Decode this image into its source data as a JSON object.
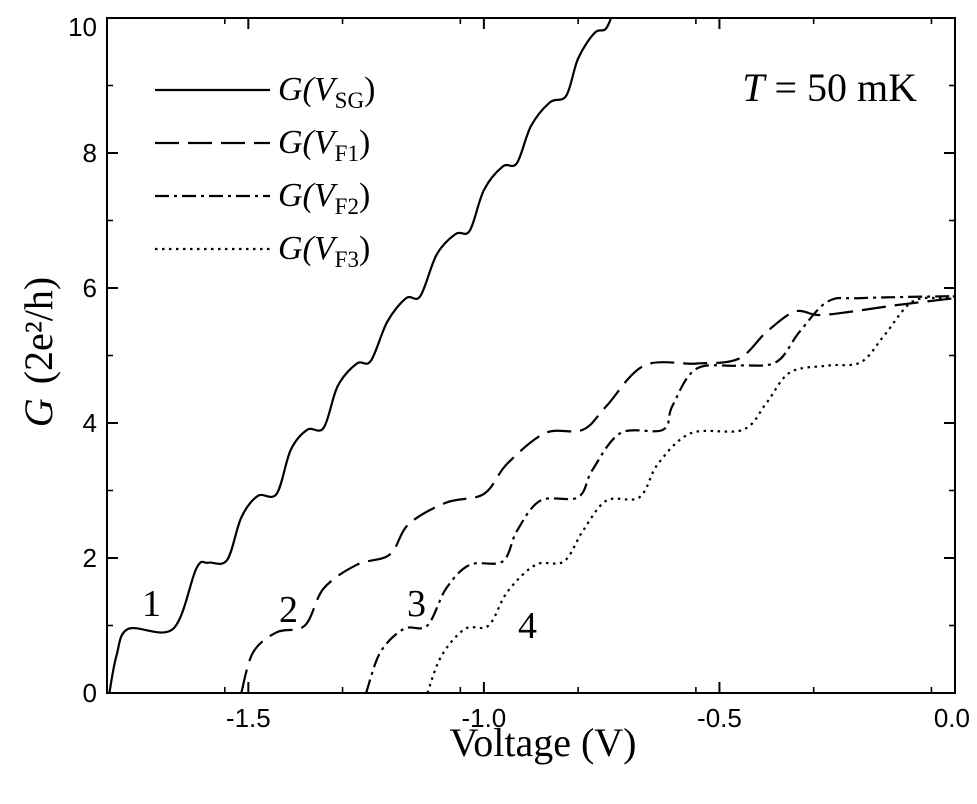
{
  "chart_data": {
    "type": "line",
    "title": "",
    "xlabel": "Voltage  (V)",
    "ylabel_var": "G",
    "ylabel_units": "(2e²/h)",
    "xlim": [
      -1.8,
      0.0
    ],
    "ylim": [
      0,
      10
    ],
    "xticks": [
      -1.5,
      -1.0,
      -0.5,
      0.0
    ],
    "xtick_labels": [
      "-1.5",
      "-1.0",
      "-0.5",
      "0.0"
    ],
    "yticks": [
      0,
      2,
      4,
      6,
      8,
      10
    ],
    "ytick_labels": [
      "0",
      "2",
      "4",
      "6",
      "8",
      "10"
    ],
    "annotation": "T = 50 mK",
    "annotation_parts": {
      "var": "T",
      "rest": " = 50 mK"
    },
    "legend_location": "top-left",
    "series": [
      {
        "name": "G(V_SG)",
        "legend_var": "G(V",
        "legend_sub": "SG",
        "legend_close": ")",
        "curve_label": "1",
        "dash": "solid",
        "points": [
          [
            -1.795,
            0
          ],
          [
            -1.78,
            0.55
          ],
          [
            -1.755,
            0.95
          ],
          [
            -1.66,
            0.95
          ],
          [
            -1.61,
            1.85
          ],
          [
            -1.585,
            1.93
          ],
          [
            -1.545,
            1.97
          ],
          [
            -1.515,
            2.6
          ],
          [
            -1.48,
            2.92
          ],
          [
            -1.44,
            2.95
          ],
          [
            -1.41,
            3.6
          ],
          [
            -1.375,
            3.9
          ],
          [
            -1.34,
            3.93
          ],
          [
            -1.31,
            4.55
          ],
          [
            -1.27,
            4.88
          ],
          [
            -1.24,
            4.92
          ],
          [
            -1.205,
            5.5
          ],
          [
            -1.165,
            5.85
          ],
          [
            -1.135,
            5.88
          ],
          [
            -1.1,
            6.5
          ],
          [
            -1.06,
            6.8
          ],
          [
            -1.03,
            6.85
          ],
          [
            -1.0,
            7.45
          ],
          [
            -0.96,
            7.8
          ],
          [
            -0.93,
            7.85
          ],
          [
            -0.9,
            8.4
          ],
          [
            -0.86,
            8.75
          ],
          [
            -0.825,
            8.85
          ],
          [
            -0.8,
            9.4
          ],
          [
            -0.765,
            9.78
          ],
          [
            -0.74,
            9.85
          ],
          [
            -0.72,
            10.2
          ]
        ]
      },
      {
        "name": "G(V_F1)",
        "legend_var": "G(V",
        "legend_sub": "F1",
        "legend_close": ")",
        "curve_label": "2",
        "dash": "dashed",
        "points": [
          [
            -1.515,
            0
          ],
          [
            -1.49,
            0.6
          ],
          [
            -1.44,
            0.9
          ],
          [
            -1.38,
            1.0
          ],
          [
            -1.34,
            1.55
          ],
          [
            -1.27,
            1.9
          ],
          [
            -1.2,
            2.05
          ],
          [
            -1.16,
            2.5
          ],
          [
            -1.08,
            2.82
          ],
          [
            -1.0,
            2.95
          ],
          [
            -0.95,
            3.4
          ],
          [
            -0.87,
            3.85
          ],
          [
            -0.79,
            3.9
          ],
          [
            -0.74,
            4.25
          ],
          [
            -0.66,
            4.85
          ],
          [
            -0.55,
            4.88
          ],
          [
            -0.46,
            4.95
          ],
          [
            -0.4,
            5.35
          ],
          [
            -0.34,
            5.65
          ],
          [
            -0.29,
            5.6
          ],
          [
            -0.22,
            5.65
          ],
          [
            -0.12,
            5.75
          ],
          [
            0.0,
            5.85
          ]
        ]
      },
      {
        "name": "G(V_F2)",
        "legend_var": "G(V",
        "legend_sub": "F2",
        "legend_close": ")",
        "curve_label": "3",
        "dash": "dashdot",
        "points": [
          [
            -1.25,
            0
          ],
          [
            -1.22,
            0.6
          ],
          [
            -1.17,
            0.95
          ],
          [
            -1.12,
            1.0
          ],
          [
            -1.08,
            1.55
          ],
          [
            -1.03,
            1.9
          ],
          [
            -0.96,
            1.95
          ],
          [
            -0.93,
            2.4
          ],
          [
            -0.88,
            2.85
          ],
          [
            -0.8,
            2.9
          ],
          [
            -0.77,
            3.3
          ],
          [
            -0.71,
            3.85
          ],
          [
            -0.62,
            3.9
          ],
          [
            -0.6,
            4.25
          ],
          [
            -0.55,
            4.8
          ],
          [
            -0.46,
            4.85
          ],
          [
            -0.38,
            4.9
          ],
          [
            -0.33,
            5.35
          ],
          [
            -0.27,
            5.8
          ],
          [
            -0.2,
            5.85
          ],
          [
            0.0,
            5.88
          ]
        ]
      },
      {
        "name": "G(V_F3)",
        "legend_var": "G(V",
        "legend_sub": "F3",
        "legend_close": ")",
        "curve_label": "4",
        "dash": "dotted",
        "points": [
          [
            -1.12,
            0
          ],
          [
            -1.09,
            0.55
          ],
          [
            -1.04,
            0.95
          ],
          [
            -0.99,
            1.0
          ],
          [
            -0.95,
            1.5
          ],
          [
            -0.89,
            1.9
          ],
          [
            -0.83,
            1.95
          ],
          [
            -0.79,
            2.4
          ],
          [
            -0.74,
            2.85
          ],
          [
            -0.67,
            2.9
          ],
          [
            -0.63,
            3.4
          ],
          [
            -0.56,
            3.85
          ],
          [
            -0.45,
            3.9
          ],
          [
            -0.4,
            4.3
          ],
          [
            -0.35,
            4.75
          ],
          [
            -0.27,
            4.85
          ],
          [
            -0.2,
            4.9
          ],
          [
            -0.15,
            5.3
          ],
          [
            -0.09,
            5.8
          ],
          [
            -0.02,
            5.85
          ],
          [
            0.0,
            5.88
          ]
        ]
      }
    ]
  }
}
